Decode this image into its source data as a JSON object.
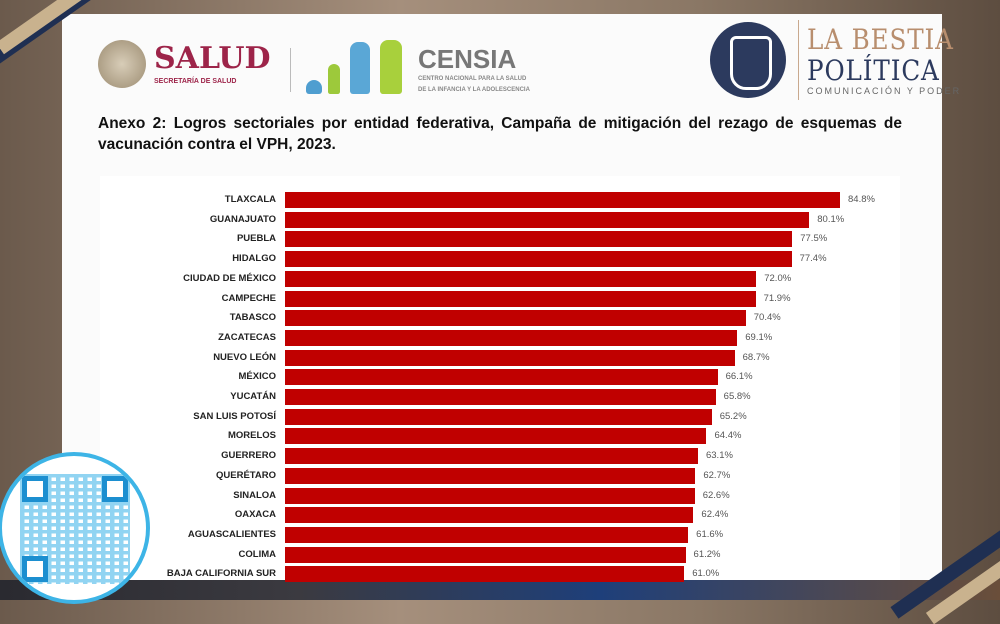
{
  "logos": {
    "salud": {
      "name": "SALUD",
      "subtitle": "SECRETARÍA DE SALUD"
    },
    "censia": {
      "name": "CENSIA",
      "subtitle_line1": "CENTRO NACIONAL PARA LA SALUD",
      "subtitle_line2": "DE LA INFANCIA Y LA ADOLESCENCIA"
    },
    "bestia": {
      "line1": "LA BESTIA",
      "line2": "POLÍTICA",
      "tagline": "COMUNICACIÓN Y PODER"
    }
  },
  "colors": {
    "bar": "#c00000",
    "salud": "#9d2449",
    "bestia_navy": "#2c3a5e"
  },
  "chart_data": {
    "type": "bar",
    "orientation": "horizontal",
    "title": "Anexo 2: Logros sectoriales por entidad federativa, Campaña de mitigación del rezago de esquemas de vacunación contra el VPH, 2023.",
    "xlabel": "",
    "ylabel": "",
    "xlim": [
      0,
      100
    ],
    "grid": false,
    "categories": [
      "TLAXCALA",
      "GUANAJUATO",
      "PUEBLA",
      "HIDALGO",
      "CIUDAD DE MÉXICO",
      "CAMPECHE",
      "TABASCO",
      "ZACATECAS",
      "NUEVO LEÓN",
      "MÉXICO",
      "YUCATÁN",
      "SAN LUIS POTOSÍ",
      "MORELOS",
      "GUERRERO",
      "QUERÉTARO",
      "SINALOA",
      "OAXACA",
      "AGUASCALIENTES",
      "COLIMA",
      "BAJA CALIFORNIA SUR"
    ],
    "values": [
      84.8,
      80.1,
      77.5,
      77.4,
      72.0,
      71.9,
      70.4,
      69.1,
      68.7,
      66.1,
      65.8,
      65.2,
      64.4,
      63.1,
      62.7,
      62.6,
      62.4,
      61.6,
      61.2,
      61.0
    ],
    "value_labels": [
      "84.8%",
      "80.1%",
      "77.5%",
      "77.4%",
      "72.0%",
      "71.9%",
      "70.4%",
      "69.1%",
      "68.7%",
      "66.1%",
      "65.8%",
      "65.2%",
      "64.4%",
      "63.1%",
      "62.7%",
      "62.6%",
      "62.4%",
      "61.6%",
      "61.2%",
      "61.0%"
    ]
  }
}
